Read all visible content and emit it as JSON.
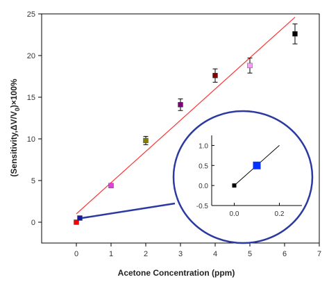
{
  "chart_data": {
    "type": "scatter",
    "title": "",
    "xlabel": "Acetone Concentration (ppm)",
    "ylabel_parts": [
      "(Sensitivity,",
      "ΔV/V",
      "0",
      ")×100%"
    ],
    "xlim": [
      -1,
      7
    ],
    "ylim": [
      -2.5,
      25
    ],
    "xticks": [
      0,
      1,
      2,
      3,
      4,
      5,
      6,
      7
    ],
    "yticks": [
      0,
      5,
      10,
      15,
      20,
      25
    ],
    "grid": false,
    "points": [
      {
        "x": 0,
        "y": 0,
        "err": 0,
        "color": "#ff0000"
      },
      {
        "x": 0.1,
        "y": 0.5,
        "err": 0,
        "color": "#1a1aa0"
      },
      {
        "x": 1,
        "y": 4.4,
        "err": 0,
        "color": "#e040e0"
      },
      {
        "x": 2,
        "y": 9.8,
        "err": 0.5,
        "color": "#808000"
      },
      {
        "x": 3,
        "y": 14.1,
        "err": 0.7,
        "color": "#800080"
      },
      {
        "x": 4,
        "y": 17.6,
        "err": 0.8,
        "color": "#800000"
      },
      {
        "x": 5,
        "y": 18.8,
        "err": 0.9,
        "color": "#ff99ff"
      },
      {
        "x": 6.3,
        "y": 22.6,
        "err": 1.2,
        "color": "#000000"
      }
    ],
    "fit_line": {
      "x": [
        0,
        6.3
      ],
      "y": [
        1.0,
        24.6
      ],
      "color": "#ff3333"
    },
    "inset": {
      "xlim": [
        -0.1,
        0.3
      ],
      "ylim": [
        -0.5,
        1.25
      ],
      "xticks": [
        "0.0",
        "0.2"
      ],
      "xtick_values": [
        0,
        0.2
      ],
      "yticks": [
        "-0.5",
        "0.0",
        "0.5",
        "1.0"
      ],
      "ytick_values": [
        -0.5,
        0,
        0.5,
        1.0
      ],
      "points": [
        {
          "x": 0,
          "y": 0,
          "color": "#000000",
          "size": "small"
        },
        {
          "x": 0.1,
          "y": 0.5,
          "color": "#0033ff",
          "size": "large"
        }
      ],
      "line": {
        "x": [
          0,
          0.2
        ],
        "y": [
          0,
          1.0
        ]
      },
      "border_color": "#2b3aa0"
    },
    "inset_pointer_color": "#2b3aa0"
  }
}
